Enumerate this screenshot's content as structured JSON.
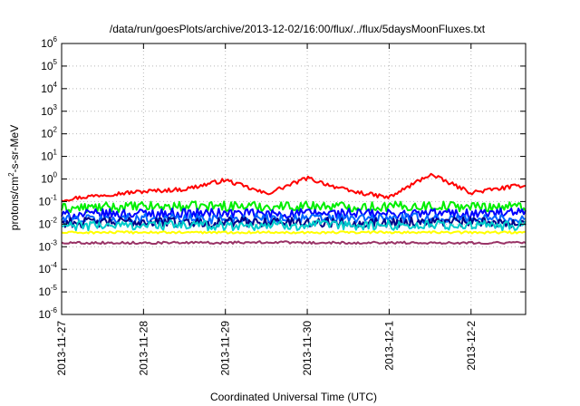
{
  "chart_data": {
    "type": "line",
    "title": "/data/run/goesPlots/archive/2013-12-02/16:00/flux/../flux/5daysMoonFluxes.txt",
    "xlabel": "Coordinated Universal Time (UTC)",
    "ylabel": {
      "prefix": "protons/cm",
      "sup": "2",
      "suffix": "-s-sr-MeV"
    },
    "x_ticks": [
      "2013-11-27",
      "2013-11-28",
      "2013-11-29",
      "2013-11-30",
      "2013-12-1",
      "2013-12-2"
    ],
    "xlim": [
      "2013-11-27T00:00",
      "2013-12-02T16:00"
    ],
    "yscale": "log",
    "y_ticks": [
      {
        "base": "10",
        "exp": "-6",
        "value": 1e-06
      },
      {
        "base": "10",
        "exp": "-5",
        "value": 1e-05
      },
      {
        "base": "10",
        "exp": "-4",
        "value": 0.0001
      },
      {
        "base": "10",
        "exp": "-3",
        "value": 0.001
      },
      {
        "base": "10",
        "exp": "-2",
        "value": 0.01
      },
      {
        "base": "10",
        "exp": "-1",
        "value": 0.1
      },
      {
        "base": "10",
        "exp": "0",
        "value": 1
      },
      {
        "base": "10",
        "exp": "1",
        "value": 10
      },
      {
        "base": "10",
        "exp": "2",
        "value": 100
      },
      {
        "base": "10",
        "exp": "3",
        "value": 1000
      },
      {
        "base": "10",
        "exp": "4",
        "value": 10000
      },
      {
        "base": "10",
        "exp": "5",
        "value": 100000
      },
      {
        "base": "10",
        "exp": "6",
        "value": 1000000
      }
    ],
    "ylim": [
      1e-06,
      1000000.0
    ],
    "grid": true,
    "series": [
      {
        "color": "#ff0000",
        "x": [
          "2013-11-27T00:00",
          "2013-11-27T12:00",
          "2013-11-28T00:00",
          "2013-11-28T12:00",
          "2013-11-29T00:00",
          "2013-11-29T12:00",
          "2013-11-30T00:00",
          "2013-11-30T12:00",
          "2013-12-01T00:00",
          "2013-12-01T12:00",
          "2013-12-02T00:00",
          "2013-12-02T16:00"
        ],
        "y": [
          0.12,
          0.2,
          0.28,
          0.35,
          0.9,
          0.22,
          1.1,
          0.3,
          0.15,
          1.6,
          0.25,
          0.55
        ]
      },
      {
        "color": "#00ee00",
        "x": [
          "2013-11-27T00:00",
          "2013-11-27T12:00",
          "2013-11-28T00:00",
          "2013-11-28T12:00",
          "2013-11-29T00:00",
          "2013-11-29T12:00",
          "2013-11-30T00:00",
          "2013-11-30T12:00",
          "2013-12-01T00:00",
          "2013-12-01T12:00",
          "2013-12-02T00:00",
          "2013-12-02T16:00"
        ],
        "y": [
          0.05,
          0.055,
          0.06,
          0.06,
          0.065,
          0.06,
          0.065,
          0.06,
          0.06,
          0.065,
          0.06,
          0.06
        ]
      },
      {
        "color": "#0000ff",
        "x": [
          "2013-11-27T00:00",
          "2013-11-27T12:00",
          "2013-11-28T00:00",
          "2013-11-28T12:00",
          "2013-11-29T00:00",
          "2013-11-29T12:00",
          "2013-11-30T00:00",
          "2013-11-30T12:00",
          "2013-12-01T00:00",
          "2013-12-01T12:00",
          "2013-12-02T00:00",
          "2013-12-02T16:00"
        ],
        "y": [
          0.025,
          0.028,
          0.03,
          0.03,
          0.03,
          0.028,
          0.03,
          0.03,
          0.028,
          0.03,
          0.03,
          0.03
        ]
      },
      {
        "color": "#0066ff",
        "x": [
          "2013-11-27T00:00",
          "2013-11-27T12:00",
          "2013-11-28T00:00",
          "2013-11-28T12:00",
          "2013-11-29T00:00",
          "2013-11-29T12:00",
          "2013-11-30T00:00",
          "2013-11-30T12:00",
          "2013-12-01T00:00",
          "2013-12-01T12:00",
          "2013-12-02T00:00",
          "2013-12-02T16:00"
        ],
        "y": [
          0.016,
          0.017,
          0.018,
          0.018,
          0.017,
          0.018,
          0.018,
          0.017,
          0.018,
          0.018,
          0.017,
          0.017
        ]
      },
      {
        "color": "#000088",
        "x": [
          "2013-11-27T00:00",
          "2013-11-27T12:00",
          "2013-11-28T00:00",
          "2013-11-28T12:00",
          "2013-11-29T00:00",
          "2013-11-29T12:00",
          "2013-11-30T00:00",
          "2013-11-30T12:00",
          "2013-12-01T00:00",
          "2013-12-01T12:00",
          "2013-12-02T00:00",
          "2013-12-02T16:00"
        ],
        "y": [
          0.012,
          0.012,
          0.013,
          0.012,
          0.012,
          0.013,
          0.012,
          0.012,
          0.012,
          0.013,
          0.012,
          0.012
        ]
      },
      {
        "color": "#00cccc",
        "x": [
          "2013-11-27T00:00",
          "2013-11-27T12:00",
          "2013-11-28T00:00",
          "2013-11-28T12:00",
          "2013-11-29T00:00",
          "2013-11-29T12:00",
          "2013-11-30T00:00",
          "2013-11-30T12:00",
          "2013-12-01T00:00",
          "2013-12-01T12:00",
          "2013-12-02T00:00",
          "2013-12-02T16:00"
        ],
        "y": [
          0.008,
          0.009,
          0.009,
          0.009,
          0.0085,
          0.009,
          0.009,
          0.0085,
          0.009,
          0.009,
          0.0085,
          0.0085
        ]
      },
      {
        "color": "#ffff00",
        "x": [
          "2013-11-27T00:00",
          "2013-11-27T12:00",
          "2013-11-28T00:00",
          "2013-11-28T12:00",
          "2013-11-29T00:00",
          "2013-11-29T12:00",
          "2013-11-30T00:00",
          "2013-11-30T12:00",
          "2013-12-01T00:00",
          "2013-12-01T12:00",
          "2013-12-02T00:00",
          "2013-12-02T16:00"
        ],
        "y": [
          0.0042,
          0.0043,
          0.0043,
          0.0043,
          0.0043,
          0.0044,
          0.0043,
          0.0043,
          0.0044,
          0.0043,
          0.0043,
          0.0043
        ]
      },
      {
        "color": "#993366",
        "x": [
          "2013-11-27T00:00",
          "2013-11-27T12:00",
          "2013-11-28T00:00",
          "2013-11-28T12:00",
          "2013-11-29T00:00",
          "2013-11-29T12:00",
          "2013-11-30T00:00",
          "2013-11-30T12:00",
          "2013-12-01T00:00",
          "2013-12-01T12:00",
          "2013-12-02T00:00",
          "2013-12-02T16:00"
        ],
        "y": [
          0.0015,
          0.0015,
          0.0015,
          0.0015,
          0.0015,
          0.0016,
          0.0015,
          0.0015,
          0.0015,
          0.0015,
          0.0015,
          0.0015
        ]
      }
    ]
  }
}
